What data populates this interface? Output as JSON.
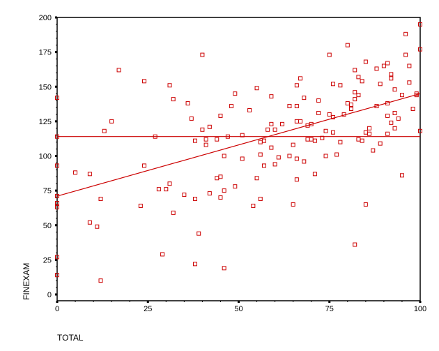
{
  "chart_data": {
    "type": "scatter",
    "title": "",
    "xlabel": "TOTAL",
    "ylabel": "FINEXAM",
    "xlim": [
      0,
      100
    ],
    "ylim": [
      0,
      200
    ],
    "xticks": [
      0,
      25,
      50,
      75,
      100
    ],
    "yticks": [
      0,
      25,
      50,
      75,
      100,
      125,
      150,
      175,
      200
    ],
    "grid": false,
    "legend": null,
    "marker_color": "#cc0000",
    "line_color": "#cc0000",
    "mean_line": {
      "y": 114
    },
    "fit_line": {
      "x": [
        0,
        100
      ],
      "y": [
        71,
        145
      ]
    },
    "points": [
      [
        0,
        142
      ],
      [
        0,
        114
      ],
      [
        0,
        93
      ],
      [
        0,
        71
      ],
      [
        0,
        66
      ],
      [
        0,
        63
      ],
      [
        0,
        27
      ],
      [
        0,
        14
      ],
      [
        5,
        88
      ],
      [
        9,
        87
      ],
      [
        9,
        52
      ],
      [
        11,
        49
      ],
      [
        12,
        69
      ],
      [
        12,
        10
      ],
      [
        13,
        118
      ],
      [
        15,
        125
      ],
      [
        17,
        162
      ],
      [
        23,
        64
      ],
      [
        24,
        93
      ],
      [
        24,
        154
      ],
      [
        27,
        114
      ],
      [
        28,
        76
      ],
      [
        29,
        29
      ],
      [
        30,
        76
      ],
      [
        31,
        151
      ],
      [
        31,
        80
      ],
      [
        32,
        59
      ],
      [
        32,
        141
      ],
      [
        35,
        72
      ],
      [
        36,
        138
      ],
      [
        37,
        127
      ],
      [
        38,
        111
      ],
      [
        38,
        69
      ],
      [
        38,
        22
      ],
      [
        39,
        44
      ],
      [
        40,
        173
      ],
      [
        40,
        119
      ],
      [
        41,
        108
      ],
      [
        41,
        112
      ],
      [
        42,
        121
      ],
      [
        42,
        73
      ],
      [
        44,
        112
      ],
      [
        44,
        84
      ],
      [
        45,
        129
      ],
      [
        45,
        70
      ],
      [
        45,
        85
      ],
      [
        46,
        100
      ],
      [
        46,
        75
      ],
      [
        46,
        19
      ],
      [
        47,
        114
      ],
      [
        48,
        136
      ],
      [
        49,
        145
      ],
      [
        49,
        78
      ],
      [
        51,
        98
      ],
      [
        51,
        115
      ],
      [
        53,
        133
      ],
      [
        54,
        64
      ],
      [
        55,
        149
      ],
      [
        55,
        84
      ],
      [
        56,
        110
      ],
      [
        56,
        101
      ],
      [
        56,
        69
      ],
      [
        57,
        93
      ],
      [
        57,
        111
      ],
      [
        58,
        119
      ],
      [
        59,
        143
      ],
      [
        59,
        123
      ],
      [
        59,
        106
      ],
      [
        60,
        119
      ],
      [
        60,
        94
      ],
      [
        61,
        99
      ],
      [
        62,
        123
      ],
      [
        64,
        136
      ],
      [
        64,
        100
      ],
      [
        65,
        108
      ],
      [
        65,
        65
      ],
      [
        66,
        151
      ],
      [
        66,
        136
      ],
      [
        66,
        125
      ],
      [
        66,
        83
      ],
      [
        66,
        98
      ],
      [
        67,
        156
      ],
      [
        67,
        125
      ],
      [
        68,
        142
      ],
      [
        68,
        96
      ],
      [
        69,
        122
      ],
      [
        69,
        112
      ],
      [
        70,
        123
      ],
      [
        70,
        112
      ],
      [
        71,
        87
      ],
      [
        71,
        111
      ],
      [
        72,
        131
      ],
      [
        72,
        140
      ],
      [
        73,
        113
      ],
      [
        74,
        118
      ],
      [
        74,
        100
      ],
      [
        75,
        173
      ],
      [
        75,
        130
      ],
      [
        76,
        128
      ],
      [
        76,
        117
      ],
      [
        76,
        152
      ],
      [
        77,
        101
      ],
      [
        78,
        151
      ],
      [
        78,
        110
      ],
      [
        79,
        130
      ],
      [
        80,
        180
      ],
      [
        80,
        138
      ],
      [
        81,
        134
      ],
      [
        81,
        137
      ],
      [
        82,
        146
      ],
      [
        82,
        141
      ],
      [
        82,
        162
      ],
      [
        82,
        36
      ],
      [
        83,
        157
      ],
      [
        83,
        112
      ],
      [
        83,
        144
      ],
      [
        84,
        111
      ],
      [
        84,
        154
      ],
      [
        85,
        168
      ],
      [
        85,
        65
      ],
      [
        85,
        117
      ],
      [
        86,
        116
      ],
      [
        86,
        120
      ],
      [
        87,
        104
      ],
      [
        88,
        136
      ],
      [
        88,
        163
      ],
      [
        89,
        109
      ],
      [
        89,
        152
      ],
      [
        90,
        165
      ],
      [
        91,
        129
      ],
      [
        91,
        138
      ],
      [
        91,
        116
      ],
      [
        91,
        167
      ],
      [
        92,
        159
      ],
      [
        92,
        156
      ],
      [
        92,
        124
      ],
      [
        93,
        131
      ],
      [
        93,
        120
      ],
      [
        93,
        148
      ],
      [
        94,
        127
      ],
      [
        95,
        86
      ],
      [
        95,
        144
      ],
      [
        96,
        188
      ],
      [
        96,
        173
      ],
      [
        97,
        165
      ],
      [
        97,
        153
      ],
      [
        98,
        134
      ],
      [
        99,
        144
      ],
      [
        99,
        145
      ],
      [
        100,
        195
      ],
      [
        100,
        177
      ],
      [
        100,
        118
      ]
    ]
  }
}
